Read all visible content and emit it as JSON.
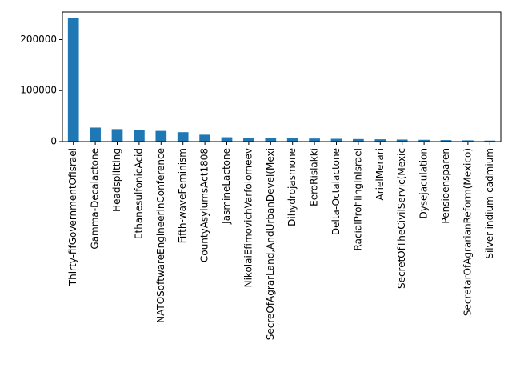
{
  "chart_data": {
    "type": "bar",
    "title": "",
    "xlabel": "",
    "ylabel": "",
    "categories": [
      "Thirty-fifGovernmentOfIsrael",
      "Gamma-Decalactone",
      "Headsplitting",
      "EthanesulfonicAcid",
      "NATOSoftwareEngineerinConference",
      "Fifth-waveFeminism",
      "CountyAsylumsAct1808",
      "JasmineLactone",
      "NikolaiEfimovichVarfolomeev",
      "SecreOfAgrarLand,AndUrbanDevel(Mexi",
      "Dihydrojasmone",
      "EeroRislakki",
      "Delta-Octalactone",
      "RacialProfilingInIsrael",
      "ArielMerari",
      "SecretOfTheCivilServic(Mexic",
      "Dysejaculation",
      "Pensioensparen",
      "SecretarOfAgrarianReform(Mexico)",
      "Silver-indium-cadmium"
    ],
    "values": [
      242000,
      27500,
      24500,
      22500,
      21000,
      18500,
      13500,
      8500,
      7500,
      7000,
      6500,
      6000,
      5500,
      5000,
      4500,
      4000,
      3500,
      3000,
      2500,
      2000
    ],
    "ylim": [
      0,
      254100
    ],
    "yticks": [
      0,
      100000,
      200000
    ],
    "ytick_labels": [
      "0",
      "100000",
      "200000"
    ],
    "grid": false,
    "legend": "none",
    "bar_color": "#1f77b4"
  }
}
